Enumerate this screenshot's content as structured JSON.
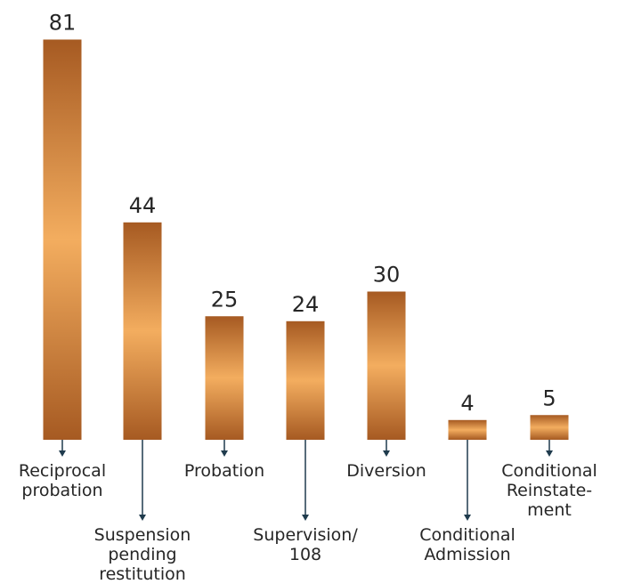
{
  "chart_data": {
    "type": "bar",
    "categories": [
      [
        "Reciprocal",
        "probation"
      ],
      [
        "Suspension",
        "pending",
        "restitution"
      ],
      [
        "Probation"
      ],
      [
        "Supervision/",
        "108"
      ],
      [
        "Diversion"
      ],
      [
        "Conditional",
        "Admission"
      ],
      [
        "Conditional",
        "Reinstate-",
        "ment"
      ]
    ],
    "values": [
      81,
      44,
      25,
      24,
      30,
      4,
      5
    ],
    "title": "",
    "xlabel": "",
    "ylabel": "",
    "grid": false,
    "legend": "none",
    "colors": {
      "bar_edge": "#a65a22",
      "bar_center": "#f3ad5f",
      "arrow": "#1f3b4d",
      "text": "#262626"
    }
  }
}
